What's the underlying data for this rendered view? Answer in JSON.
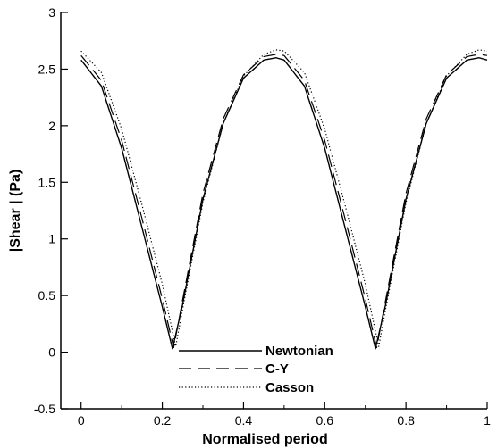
{
  "chart_data": {
    "type": "line",
    "title": "",
    "xlabel": "Normalised period",
    "ylabel": "|Shear | (Pa)",
    "xlim": [
      -0.05,
      1.0
    ],
    "ylim": [
      -0.5,
      3.0
    ],
    "x_ticks": [
      "0",
      "0.2",
      "0.4",
      "0.6",
      "0.8",
      "1"
    ],
    "y_ticks": [
      "-0.5",
      "0",
      "0.5",
      "1",
      "1.5",
      "2",
      "2.5",
      "3"
    ],
    "grid": false,
    "legend_position": "bottom-center",
    "series": [
      {
        "name": "Newtonian",
        "style": "solid",
        "points": [
          [
            0,
            2.58
          ],
          [
            0.05,
            2.35
          ],
          [
            0.1,
            1.8
          ],
          [
            0.15,
            1.1
          ],
          [
            0.2,
            0.4
          ],
          [
            0.225,
            0.03
          ],
          [
            0.25,
            0.42
          ],
          [
            0.3,
            1.35
          ],
          [
            0.35,
            2.02
          ],
          [
            0.4,
            2.42
          ],
          [
            0.45,
            2.58
          ],
          [
            0.48,
            2.6
          ],
          [
            0.5,
            2.58
          ],
          [
            0.55,
            2.35
          ],
          [
            0.6,
            1.8
          ],
          [
            0.65,
            1.1
          ],
          [
            0.7,
            0.4
          ],
          [
            0.725,
            0.03
          ],
          [
            0.75,
            0.42
          ],
          [
            0.8,
            1.35
          ],
          [
            0.85,
            2.02
          ],
          [
            0.9,
            2.42
          ],
          [
            0.95,
            2.58
          ],
          [
            0.98,
            2.6
          ],
          [
            1.0,
            2.58
          ]
        ]
      },
      {
        "name": "C-Y",
        "style": "dashed",
        "points": [
          [
            0,
            2.62
          ],
          [
            0.05,
            2.4
          ],
          [
            0.1,
            1.87
          ],
          [
            0.15,
            1.18
          ],
          [
            0.2,
            0.47
          ],
          [
            0.228,
            0.04
          ],
          [
            0.25,
            0.46
          ],
          [
            0.3,
            1.4
          ],
          [
            0.35,
            2.06
          ],
          [
            0.4,
            2.45
          ],
          [
            0.45,
            2.61
          ],
          [
            0.48,
            2.63
          ],
          [
            0.5,
            2.62
          ],
          [
            0.55,
            2.4
          ],
          [
            0.6,
            1.87
          ],
          [
            0.65,
            1.18
          ],
          [
            0.7,
            0.47
          ],
          [
            0.728,
            0.04
          ],
          [
            0.75,
            0.46
          ],
          [
            0.8,
            1.4
          ],
          [
            0.85,
            2.06
          ],
          [
            0.9,
            2.45
          ],
          [
            0.95,
            2.61
          ],
          [
            0.98,
            2.63
          ],
          [
            1.0,
            2.62
          ]
        ]
      },
      {
        "name": "Casson",
        "style": "dotted",
        "points": [
          [
            0,
            2.66
          ],
          [
            0.05,
            2.47
          ],
          [
            0.1,
            1.97
          ],
          [
            0.15,
            1.3
          ],
          [
            0.2,
            0.6
          ],
          [
            0.233,
            0.05
          ],
          [
            0.25,
            0.38
          ],
          [
            0.3,
            1.32
          ],
          [
            0.35,
            2.02
          ],
          [
            0.4,
            2.44
          ],
          [
            0.45,
            2.63
          ],
          [
            0.48,
            2.67
          ],
          [
            0.5,
            2.66
          ],
          [
            0.55,
            2.47
          ],
          [
            0.6,
            1.97
          ],
          [
            0.65,
            1.3
          ],
          [
            0.7,
            0.6
          ],
          [
            0.733,
            0.05
          ],
          [
            0.75,
            0.38
          ],
          [
            0.8,
            1.32
          ],
          [
            0.85,
            2.02
          ],
          [
            0.9,
            2.44
          ],
          [
            0.95,
            2.63
          ],
          [
            0.98,
            2.67
          ],
          [
            1.0,
            2.66
          ]
        ]
      }
    ]
  }
}
